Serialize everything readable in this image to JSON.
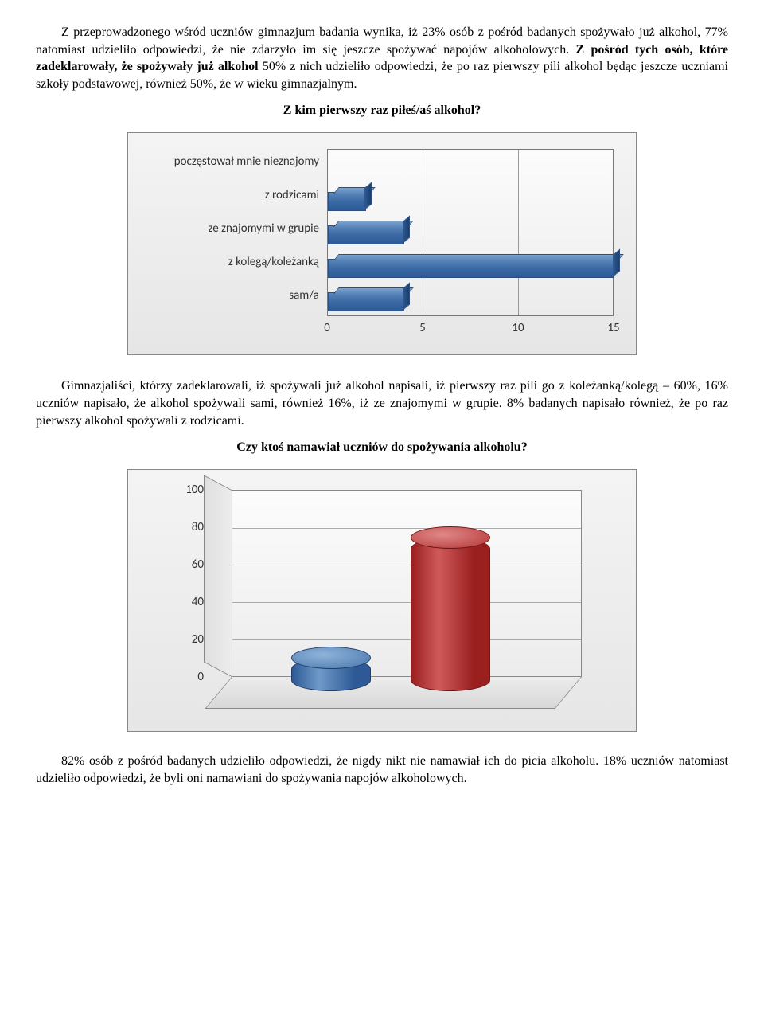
{
  "para1_a": "Z przeprowadzonego wśród uczniów gimnazjum badania wynika, iż 23% osób z pośród badanych spożywało już alkohol, 77% natomiast udzieliło odpowiedzi, że nie zdarzyło im się jeszcze spożywać napojów alkoholowych. ",
  "para1_b": "Z pośród tych osób, które zadeklarowały, że spożywały już alkohol",
  "para1_c": " 50% z nich udzieliło odpowiedzi, że po raz pierwszy pili alkohol będąc jeszcze uczniami szkoły podstawowej, również 50%, że w wieku gimnazjalnym.",
  "chart1": {
    "title": "Z kim pierwszy raz piłeś/aś alkohol?",
    "type": "bar-horizontal-3d",
    "categories": [
      "poczęstował mnie nieznajomy",
      "z rodzicami",
      "ze znajomymi w grupie",
      "z kolegą/koleżanką",
      "sam/a"
    ],
    "values": [
      0,
      2,
      4,
      15,
      4
    ],
    "bar_color": "#4073ab",
    "xlim": [
      0,
      15
    ],
    "xtick_step": 5,
    "xticks": [
      0,
      5,
      10,
      15
    ],
    "background_color": "#ececec",
    "grid_color": "#999999",
    "label_font": "Calibri",
    "label_fontsize": 15
  },
  "para2": "Gimnazjaliści, którzy zadeklarowali, iż spożywali już alkohol napisali, iż pierwszy raz pili go z koleżanką/kolegą – 60%, 16% uczniów napisało, że alkohol spożywali sami, również 16%, iż ze znajomymi w grupie. 8% badanych napisało również, że po raz pierwszy alkohol spożywali z rodzicami.",
  "chart2": {
    "title": "Czy ktoś namawiał uczniów do spożywania alkoholu?",
    "type": "cylinder-3d",
    "values": [
      18,
      82
    ],
    "colors": [
      "#4073ab",
      "#b43636"
    ],
    "ylim": [
      0,
      100
    ],
    "ytick_step": 20,
    "yticks": [
      0,
      20,
      40,
      60,
      80,
      100
    ],
    "background_color": "#ececec",
    "grid_color": "#aaaaaa",
    "label_font": "Calibri",
    "label_fontsize": 15
  },
  "para3": "82% osób z pośród badanych udzieliło odpowiedzi, że nigdy nikt nie namawiał ich do picia alkoholu. 18% uczniów natomiast udzieliło odpowiedzi, że byli oni namawiani do spożywania napojów alkoholowych."
}
